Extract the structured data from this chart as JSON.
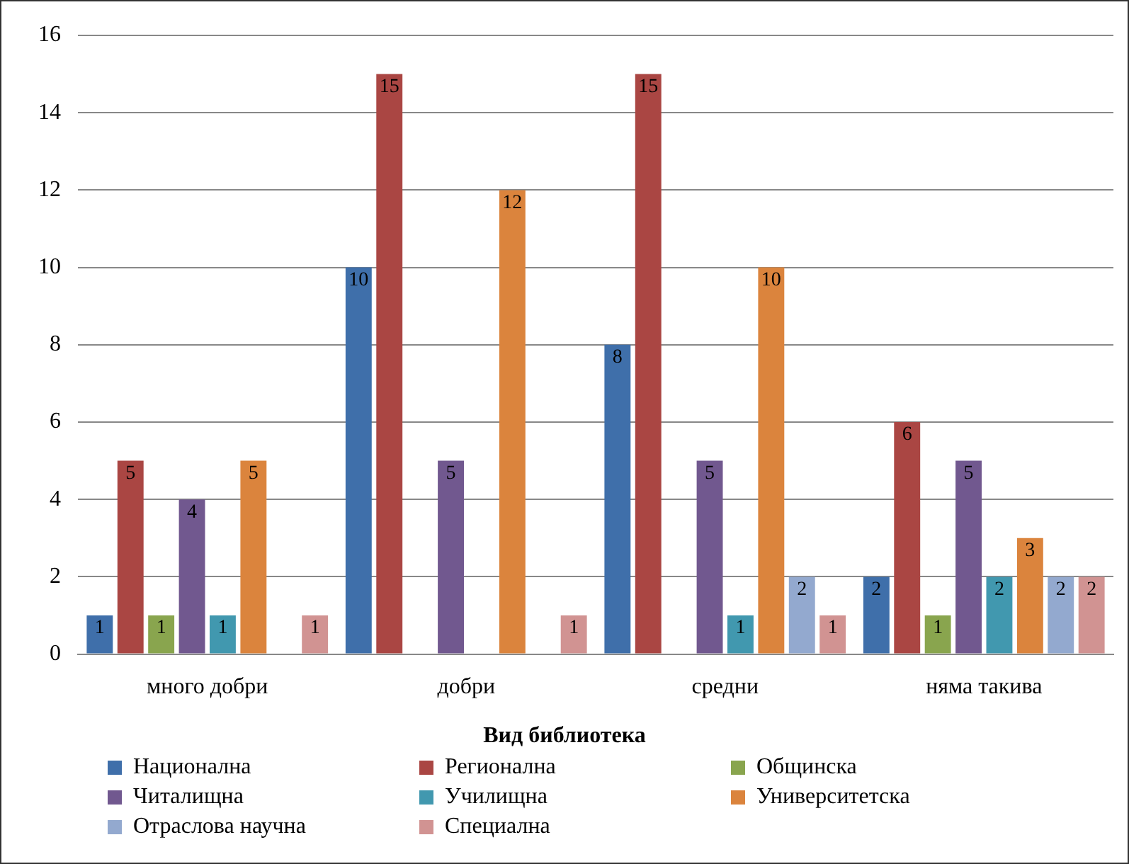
{
  "chart_data": {
    "type": "bar",
    "legend_title": "Вид библиотека",
    "categories": [
      "много добри",
      "добри",
      "средни",
      "няма такива"
    ],
    "series": [
      {
        "name": "Национална",
        "color": "#3f6faa",
        "values": [
          1,
          10,
          8,
          2
        ]
      },
      {
        "name": "Регионална",
        "color": "#aa4643",
        "values": [
          5,
          15,
          15,
          6
        ]
      },
      {
        "name": "Общинска",
        "color": "#89a54e",
        "values": [
          1,
          null,
          null,
          1
        ]
      },
      {
        "name": "Читалищна",
        "color": "#71588f",
        "values": [
          4,
          5,
          5,
          5
        ]
      },
      {
        "name": "Училищна",
        "color": "#4198af",
        "values": [
          1,
          null,
          1,
          2
        ]
      },
      {
        "name": "Университетска",
        "color": "#db843d",
        "values": [
          5,
          12,
          10,
          3
        ]
      },
      {
        "name": "Отраслова научна",
        "color": "#93a9cf",
        "values": [
          null,
          null,
          2,
          2
        ]
      },
      {
        "name": "Специална",
        "color": "#d19392",
        "values": [
          1,
          1,
          1,
          2
        ]
      }
    ],
    "ylim": [
      0,
      16
    ],
    "yticks": [
      0,
      2,
      4,
      6,
      8,
      10,
      12,
      14,
      16
    ],
    "grid": "y",
    "legend": "bottom",
    "data_labels": true
  }
}
